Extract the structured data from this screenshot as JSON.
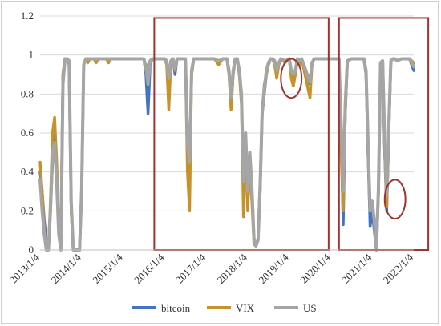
{
  "chart_data": {
    "type": "line",
    "title": "",
    "xlabel": "",
    "ylabel": "",
    "ylim": [
      0,
      1.2
    ],
    "yticks": [
      "0",
      "0.2",
      "0.4",
      "0.6",
      "0.8",
      "1",
      "1.2"
    ],
    "xticks": [
      "2013/1/4",
      "2014/1/4",
      "2015/1/4",
      "2016/1/4",
      "2017/1/4",
      "2018/1/4",
      "2019/1/4",
      "2020/1/4",
      "2021/1/4",
      "2022/1/4"
    ],
    "grid": "horizontal",
    "legend_position": "bottom",
    "x": [
      2013.0,
      2013.05,
      2013.1,
      2013.15,
      2013.2,
      2013.25,
      2013.3,
      2013.35,
      2013.4,
      2013.45,
      2013.5,
      2013.55,
      2013.6,
      2013.65,
      2013.7,
      2013.75,
      2013.8,
      2013.85,
      2013.9,
      2013.95,
      2014.0,
      2014.05,
      2014.1,
      2014.15,
      2014.2,
      2014.25,
      2014.3,
      2014.35,
      2014.4,
      2014.45,
      2014.5,
      2014.55,
      2014.6,
      2014.65,
      2014.7,
      2014.75,
      2014.8,
      2014.85,
      2014.9,
      2014.95,
      2015.0,
      2015.1,
      2015.2,
      2015.3,
      2015.4,
      2015.5,
      2015.55,
      2015.6,
      2015.65,
      2015.7,
      2015.8,
      2015.9,
      2016.0,
      2016.05,
      2016.1,
      2016.15,
      2016.2,
      2016.25,
      2016.3,
      2016.4,
      2016.5,
      2016.55,
      2016.6,
      2016.65,
      2016.7,
      2016.8,
      2016.9,
      2017.0,
      2017.1,
      2017.2,
      2017.3,
      2017.4,
      2017.5,
      2017.55,
      2017.6,
      2017.65,
      2017.7,
      2017.75,
      2017.8,
      2017.85,
      2017.9,
      2017.95,
      2018.0,
      2018.05,
      2018.1,
      2018.15,
      2018.2,
      2018.25,
      2018.3,
      2018.35,
      2018.4,
      2018.45,
      2018.5,
      2018.55,
      2018.6,
      2018.65,
      2018.7,
      2018.75,
      2018.8,
      2018.9,
      2019.0,
      2019.05,
      2019.1,
      2019.15,
      2019.2,
      2019.25,
      2019.3,
      2019.4,
      2019.5,
      2019.55,
      2019.6,
      2019.65,
      2019.7,
      2019.8,
      2019.9,
      2020.0,
      2020.1,
      2020.2,
      2020.25,
      2020.3,
      2020.35,
      2020.4,
      2020.5,
      2020.6,
      2020.7,
      2020.8,
      2020.85,
      2020.9,
      2020.95,
      2021.0,
      2021.05,
      2021.1,
      2021.15,
      2021.2,
      2021.25,
      2021.3,
      2021.35,
      2021.4,
      2021.45,
      2021.5,
      2021.55,
      2021.6,
      2021.7,
      2021.8,
      2021.9,
      2022.0
    ],
    "series": [
      {
        "name": "bitcoin",
        "color": "#4472c4",
        "values": [
          0.4,
          0.3,
          0.15,
          0.05,
          0.0,
          0.2,
          0.45,
          0.62,
          0.4,
          0.1,
          0.05,
          0.9,
          0.98,
          0.98,
          0.95,
          0.2,
          0.0,
          0.0,
          0.0,
          0.0,
          0.3,
          0.95,
          0.98,
          0.97,
          0.98,
          0.98,
          0.98,
          0.97,
          0.98,
          0.98,
          0.98,
          0.98,
          0.98,
          0.97,
          0.98,
          0.98,
          0.98,
          0.98,
          0.98,
          0.98,
          0.98,
          0.98,
          0.98,
          0.98,
          0.98,
          0.98,
          0.9,
          0.7,
          0.95,
          0.98,
          0.98,
          0.98,
          0.98,
          0.97,
          0.85,
          0.97,
          0.98,
          0.9,
          0.98,
          0.98,
          0.98,
          0.6,
          0.4,
          0.9,
          0.98,
          0.98,
          0.98,
          0.98,
          0.98,
          0.98,
          0.96,
          0.98,
          0.98,
          0.9,
          0.75,
          0.9,
          0.98,
          0.98,
          0.9,
          0.78,
          0.3,
          0.6,
          0.25,
          0.5,
          0.3,
          0.05,
          0.02,
          0.05,
          0.3,
          0.7,
          0.8,
          0.9,
          0.95,
          0.98,
          0.98,
          0.97,
          0.9,
          0.95,
          0.98,
          0.97,
          0.98,
          0.9,
          0.88,
          0.9,
          0.98,
          0.97,
          0.98,
          0.9,
          0.85,
          0.95,
          0.98,
          0.98,
          0.98,
          0.98,
          0.98,
          0.98,
          0.98,
          0.98,
          0.6,
          0.13,
          0.7,
          0.97,
          0.98,
          0.98,
          0.98,
          0.98,
          0.9,
          0.5,
          0.12,
          0.2,
          0.1,
          0.0,
          0.3,
          0.95,
          0.97,
          0.5,
          0.2,
          0.6,
          0.97,
          0.98,
          0.98,
          0.97,
          0.98,
          0.98,
          0.98,
          0.92
        ]
      },
      {
        "name": "VIX",
        "color": "#c8922a",
        "values": [
          0.45,
          0.3,
          0.1,
          0.0,
          0.0,
          0.25,
          0.6,
          0.68,
          0.45,
          0.12,
          0.03,
          0.9,
          0.98,
          0.98,
          0.96,
          0.2,
          0.0,
          0.0,
          0.0,
          0.0,
          0.3,
          0.95,
          0.98,
          0.96,
          0.98,
          0.98,
          0.98,
          0.96,
          0.98,
          0.98,
          0.98,
          0.98,
          0.98,
          0.96,
          0.98,
          0.98,
          0.98,
          0.98,
          0.98,
          0.98,
          0.98,
          0.98,
          0.98,
          0.98,
          0.98,
          0.98,
          0.92,
          0.95,
          0.97,
          0.98,
          0.98,
          0.98,
          0.98,
          0.95,
          0.72,
          0.96,
          0.98,
          0.92,
          0.98,
          0.98,
          0.98,
          0.4,
          0.2,
          0.9,
          0.98,
          0.98,
          0.98,
          0.98,
          0.98,
          0.98,
          0.95,
          0.98,
          0.98,
          0.9,
          0.72,
          0.9,
          0.98,
          0.98,
          0.9,
          0.75,
          0.17,
          0.55,
          0.2,
          0.45,
          0.25,
          0.03,
          0.02,
          0.05,
          0.35,
          0.7,
          0.85,
          0.9,
          0.95,
          0.98,
          0.98,
          0.95,
          0.88,
          0.95,
          0.98,
          0.96,
          0.98,
          0.88,
          0.84,
          0.9,
          0.98,
          0.95,
          0.98,
          0.88,
          0.78,
          0.95,
          0.98,
          0.98,
          0.98,
          0.98,
          0.98,
          0.98,
          0.98,
          0.98,
          0.5,
          0.2,
          0.7,
          0.97,
          0.98,
          0.98,
          0.98,
          0.98,
          0.9,
          0.5,
          0.22,
          0.24,
          0.15,
          0.0,
          0.3,
          0.96,
          0.97,
          0.5,
          0.22,
          0.6,
          0.97,
          0.98,
          0.98,
          0.97,
          0.98,
          0.98,
          0.98,
          0.96
        ]
      },
      {
        "name": "US",
        "color": "#a5a5a5",
        "values": [
          0.36,
          0.2,
          0.08,
          0.0,
          0.0,
          0.2,
          0.5,
          0.55,
          0.35,
          0.08,
          0.0,
          0.85,
          0.98,
          0.98,
          0.97,
          0.25,
          0.0,
          0.0,
          0.0,
          0.0,
          0.3,
          0.95,
          0.98,
          0.98,
          0.98,
          0.98,
          0.98,
          0.98,
          0.98,
          0.98,
          0.98,
          0.98,
          0.98,
          0.98,
          0.98,
          0.98,
          0.98,
          0.98,
          0.98,
          0.98,
          0.98,
          0.98,
          0.98,
          0.98,
          0.98,
          0.98,
          0.94,
          0.85,
          0.97,
          0.98,
          0.98,
          0.98,
          0.98,
          0.97,
          0.88,
          0.97,
          0.98,
          0.93,
          0.98,
          0.98,
          0.98,
          0.55,
          0.45,
          0.92,
          0.98,
          0.98,
          0.98,
          0.98,
          0.98,
          0.98,
          0.97,
          0.98,
          0.98,
          0.92,
          0.78,
          0.92,
          0.98,
          0.98,
          0.92,
          0.8,
          0.35,
          0.6,
          0.3,
          0.5,
          0.32,
          0.06,
          0.02,
          0.05,
          0.32,
          0.72,
          0.82,
          0.92,
          0.96,
          0.98,
          0.98,
          0.97,
          0.92,
          0.96,
          0.98,
          0.97,
          0.98,
          0.92,
          0.9,
          0.92,
          0.98,
          0.97,
          0.98,
          0.92,
          0.86,
          0.96,
          0.98,
          0.98,
          0.98,
          0.98,
          0.98,
          0.98,
          0.98,
          0.98,
          0.65,
          0.3,
          0.75,
          0.97,
          0.98,
          0.98,
          0.98,
          0.98,
          0.92,
          0.55,
          0.2,
          0.25,
          0.15,
          0.0,
          0.32,
          0.96,
          0.97,
          0.55,
          0.28,
          0.65,
          0.97,
          0.98,
          0.98,
          0.97,
          0.98,
          0.98,
          0.98,
          0.94
        ]
      }
    ],
    "annotations": [
      {
        "kind": "rect",
        "x0": 2015.75,
        "x1": 2019.95,
        "y0": 0.0,
        "y1": 1.19,
        "color": "#a0332c"
      },
      {
        "kind": "rect",
        "x0": 2020.2,
        "x1": 2022.35,
        "y0": 0.0,
        "y1": 1.19,
        "color": "#a0332c"
      },
      {
        "kind": "ellipse",
        "cx": 2019.05,
        "cy": 0.88,
        "rx": 0.25,
        "ry": 0.1,
        "color": "#a0332c"
      },
      {
        "kind": "ellipse",
        "cx": 2021.55,
        "cy": 0.26,
        "rx": 0.25,
        "ry": 0.1,
        "color": "#a0332c"
      }
    ]
  }
}
